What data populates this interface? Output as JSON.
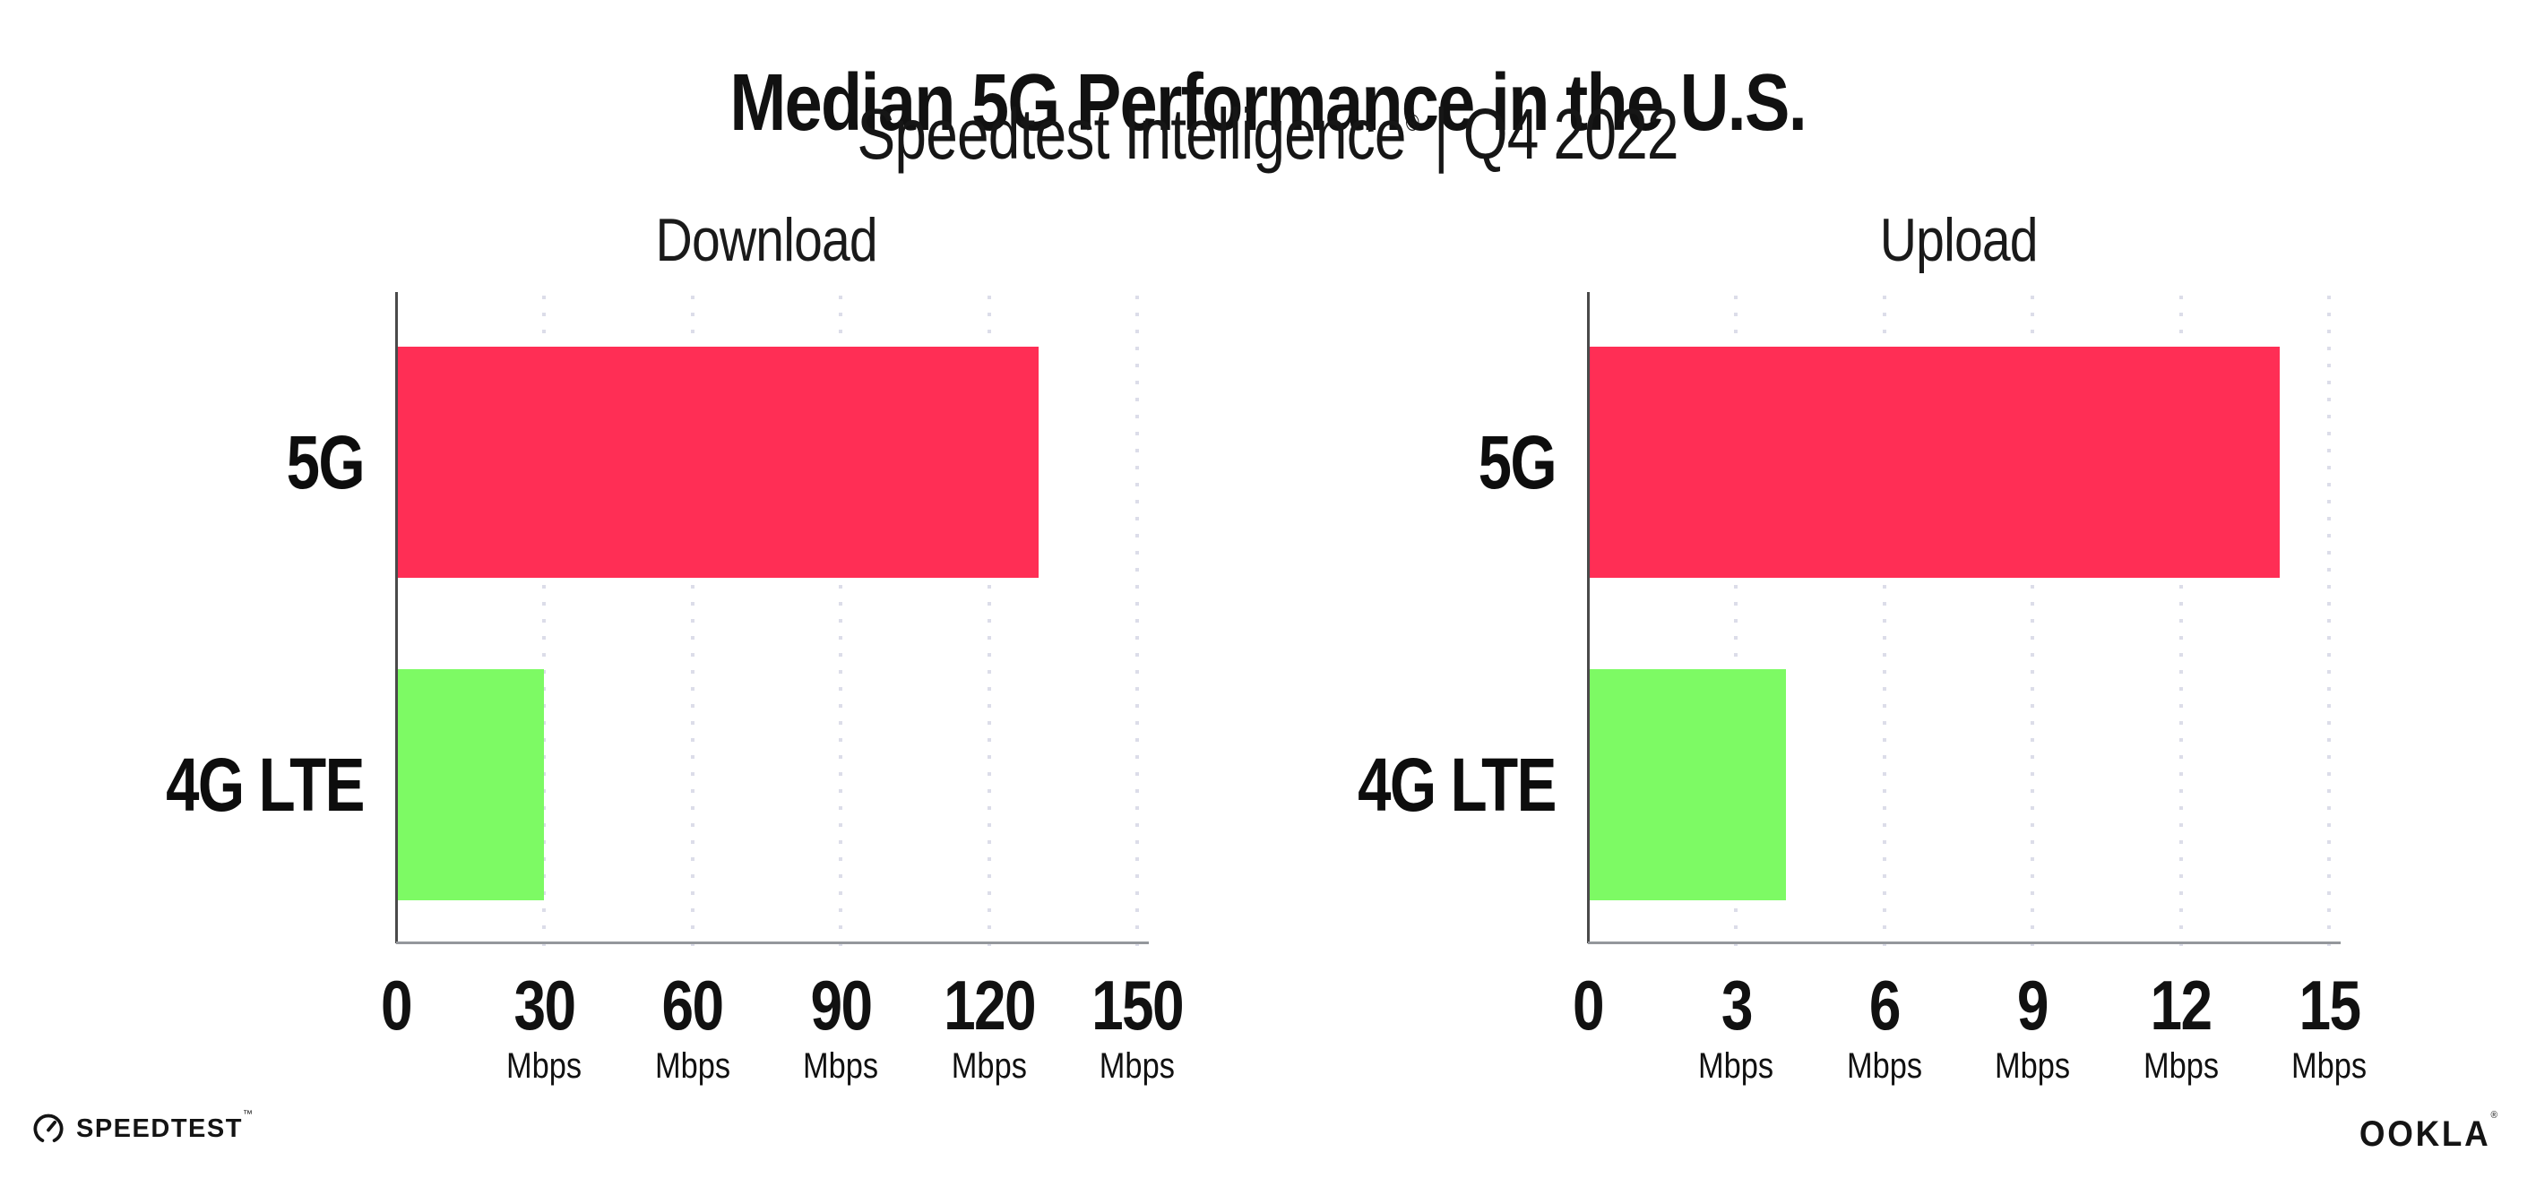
{
  "header": {
    "title": "Median 5G Performance in the U.S.",
    "subtitle_name": "Speedtest Intelligence",
    "subtitle_reg": "®",
    "subtitle_rest": " | Q4 2022"
  },
  "colors": {
    "bar_5g": "#ff2e55",
    "bar_4g_lte": "#7dfa64",
    "gridline": "#dcdde9",
    "axis_y": "#4a4a4a",
    "axis_x": "#94979c",
    "text": "#111111"
  },
  "chart_data": [
    {
      "type": "bar",
      "orientation": "horizontal",
      "title": "Download",
      "categories": [
        "5G",
        "4G LTE"
      ],
      "values": [
        130,
        30
      ],
      "unit": "Mbps",
      "xlim": [
        0,
        150
      ],
      "grid": "vertical-dotted",
      "legend": "none",
      "bar_colors": {
        "5G": "#ff2e55",
        "4G LTE": "#7dfa64"
      },
      "ticks": [
        {
          "value": 0,
          "label": "0",
          "unit": ""
        },
        {
          "value": 30,
          "label": "30",
          "unit": "Mbps"
        },
        {
          "value": 60,
          "label": "60",
          "unit": "Mbps"
        },
        {
          "value": 90,
          "label": "90",
          "unit": "Mbps"
        },
        {
          "value": 120,
          "label": "120",
          "unit": "Mbps"
        },
        {
          "value": 150,
          "label": "150",
          "unit": "Mbps"
        }
      ]
    },
    {
      "type": "bar",
      "orientation": "horizontal",
      "title": "Upload",
      "categories": [
        "5G",
        "4G LTE"
      ],
      "values": [
        14,
        4
      ],
      "unit": "Mbps",
      "xlim": [
        0,
        15
      ],
      "grid": "vertical-dotted",
      "legend": "none",
      "bar_colors": {
        "5G": "#ff2e55",
        "4G LTE": "#7dfa64"
      },
      "ticks": [
        {
          "value": 0,
          "label": "0",
          "unit": ""
        },
        {
          "value": 3,
          "label": "3",
          "unit": "Mbps"
        },
        {
          "value": 6,
          "label": "6",
          "unit": "Mbps"
        },
        {
          "value": 9,
          "label": "9",
          "unit": "Mbps"
        },
        {
          "value": 12,
          "label": "12",
          "unit": "Mbps"
        },
        {
          "value": 15,
          "label": "15",
          "unit": "Mbps"
        }
      ]
    }
  ],
  "footer": {
    "speedtest_label": "SPEEDTEST",
    "speedtest_tm": "™",
    "ookla_label": "OOKLA",
    "ookla_reg": "®"
  }
}
